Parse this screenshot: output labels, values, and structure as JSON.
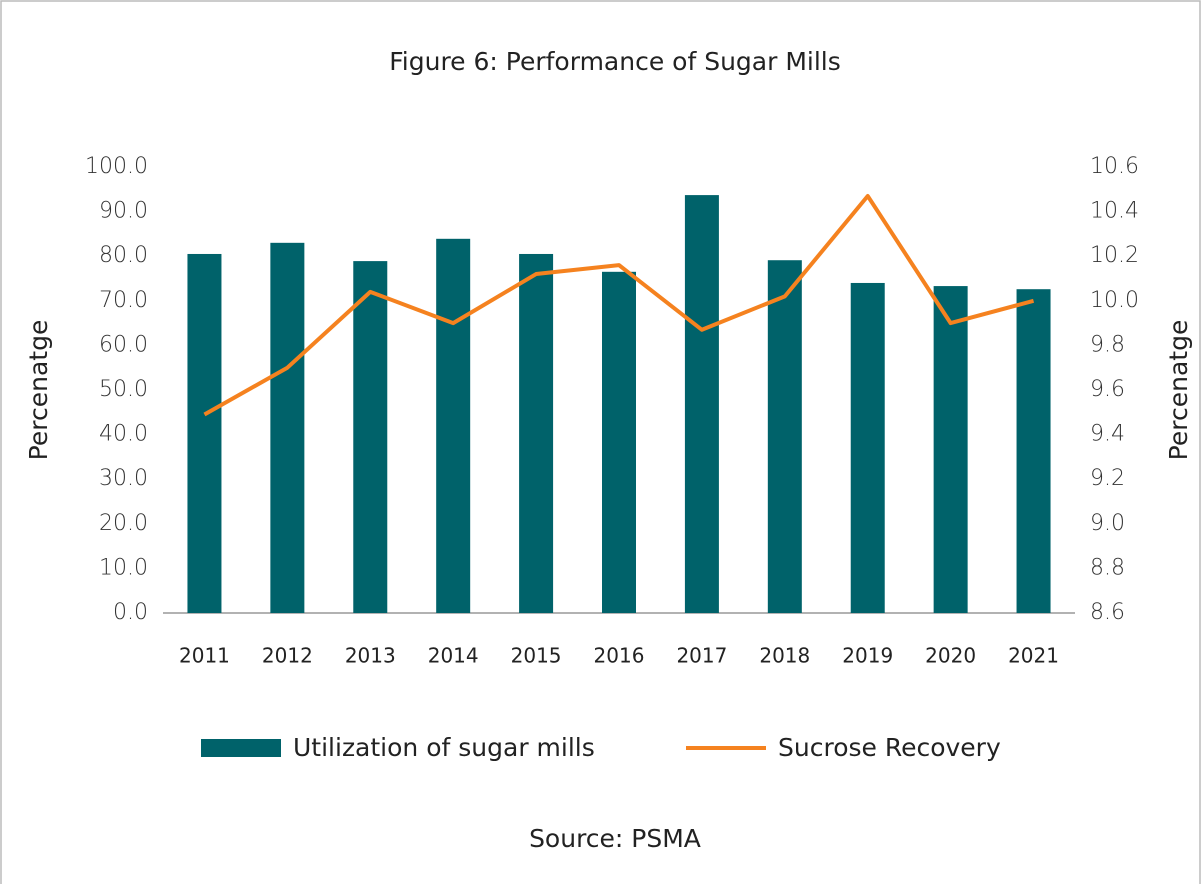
{
  "chart_data": {
    "type": "bar_line",
    "title": "Figure 6: Performance of Sugar Mills",
    "source": "Source: PSMA",
    "y_label": "Percenatge",
    "y2_label": "Percenatge",
    "categories": [
      "2011",
      "2012",
      "2013",
      "2014",
      "2015",
      "2016",
      "2017",
      "2018",
      "2019",
      "2020",
      "2021"
    ],
    "series": [
      {
        "name": "Utilization of sugar mills",
        "type": "bar",
        "color": "#00626a",
        "axis": "y",
        "values": [
          80.5,
          83.0,
          78.9,
          83.9,
          80.5,
          76.5,
          93.7,
          79.1,
          74.0,
          73.3,
          72.6
        ]
      },
      {
        "name": "Sucrose Recovery",
        "type": "line",
        "color": "#f5821f",
        "axis": "y2",
        "values": [
          9.49,
          9.7,
          10.04,
          9.9,
          10.12,
          10.16,
          9.87,
          10.02,
          10.47,
          9.9,
          10.0
        ]
      }
    ],
    "ylim": [
      0,
      100
    ],
    "yticks": [
      {
        "value": 0,
        "label": "0.0"
      },
      {
        "value": 10,
        "label": "10.0"
      },
      {
        "value": 20,
        "label": "20.0"
      },
      {
        "value": 30,
        "label": "30.0"
      },
      {
        "value": 40,
        "label": "40.0"
      },
      {
        "value": 50,
        "label": "50.0"
      },
      {
        "value": 60,
        "label": "60.0"
      },
      {
        "value": 70,
        "label": "70.0"
      },
      {
        "value": 80,
        "label": "80.0"
      },
      {
        "value": 90,
        "label": "90.0"
      },
      {
        "value": 100,
        "label": "100.0"
      }
    ],
    "y2lim": [
      8.6,
      10.6
    ],
    "y2ticks": [
      8.6,
      8.8,
      {
        "value": 9.0,
        "label": "9.0"
      },
      9.2,
      9.4,
      9.6,
      9.8,
      {
        "value": 10.0,
        "label": "10.0"
      },
      10.2,
      10.4,
      10.6
    ],
    "grid": false
  }
}
